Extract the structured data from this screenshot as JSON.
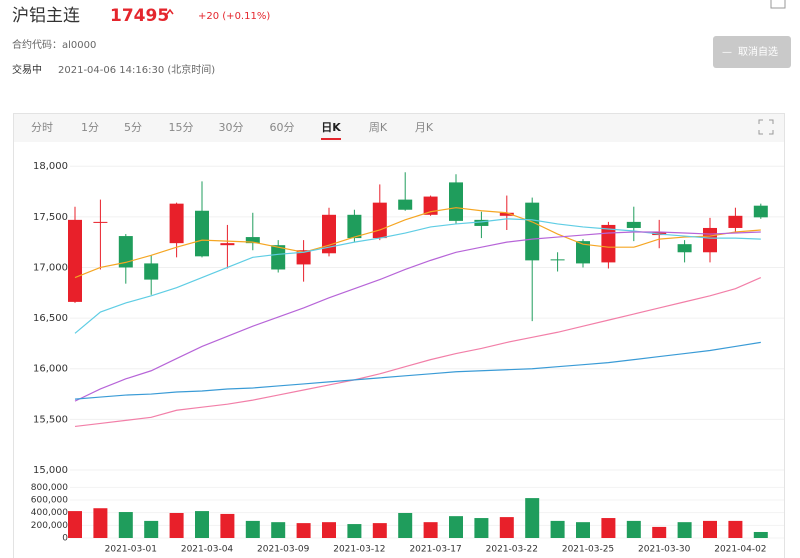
{
  "header": {
    "name": "沪铝主连",
    "price": "17495",
    "change": "+20 (+0.11%)",
    "code": "合约代码：al0000",
    "status": "交易中",
    "time": "2021-04-06 14:16:30 (北京时间)",
    "button": "取消自选"
  },
  "tabs": {
    "items": [
      "分时",
      "1分",
      "5分",
      "15分",
      "30分",
      "60分",
      "日K",
      "周K",
      "月K"
    ],
    "selected": 6
  },
  "chart_data": {
    "type": "candlestick",
    "categories": [
      null,
      null,
      "2021-03-01",
      null,
      null,
      "2021-03-04",
      null,
      null,
      "2021-03-09",
      null,
      null,
      "2021-03-12",
      null,
      null,
      "2021-03-17",
      null,
      null,
      "2021-03-22",
      null,
      null,
      "2021-03-25",
      null,
      null,
      "2021-03-30",
      null,
      null,
      "2021-04-02",
      null
    ],
    "open": [
      16660,
      17440,
      17310,
      17040,
      17240,
      17560,
      17220,
      17300,
      17220,
      17030,
      17140,
      17520,
      17290,
      17670,
      17520,
      17840,
      17470,
      17510,
      17640,
      17080,
      17260,
      17050,
      17450,
      17320,
      17230,
      17150,
      17390,
      17610
    ],
    "high": [
      17600,
      17670,
      17330,
      17120,
      17640,
      17850,
      17420,
      17540,
      17270,
      17270,
      17590,
      17570,
      17820,
      17940,
      17710,
      17920,
      17550,
      17710,
      17690,
      17150,
      17280,
      17450,
      17600,
      17470,
      17270,
      17490,
      17590,
      17630
    ],
    "low": [
      16650,
      16980,
      16840,
      16730,
      17100,
      17100,
      16990,
      17170,
      16950,
      16860,
      17110,
      17250,
      17270,
      17560,
      17510,
      17430,
      17290,
      17370,
      16470,
      16960,
      17000,
      16990,
      17260,
      17190,
      17050,
      17050,
      17350,
      17480
    ],
    "close": [
      17470,
      17450,
      17000,
      16880,
      17630,
      17110,
      17240,
      17240,
      16980,
      17170,
      17520,
      17290,
      17640,
      17570,
      17700,
      17460,
      17410,
      17540,
      17070,
      17070,
      17040,
      17420,
      17390,
      17350,
      17150,
      17390,
      17510,
      17495
    ],
    "up_color": "#e8202a",
    "down_color": "#1f9d5c",
    "ylim": [
      15000,
      18150
    ],
    "yticks": [
      {
        "value": 15000,
        "label": "15,000"
      },
      {
        "value": 15500,
        "label": "15,500"
      },
      {
        "value": 16000,
        "label": "16,000"
      },
      {
        "value": 16500,
        "label": "16,500"
      },
      {
        "value": 17000,
        "label": "17,000"
      },
      {
        "value": 17500,
        "label": "17,500"
      },
      {
        "value": 18000,
        "label": "18,000"
      }
    ],
    "grid": true,
    "moving_averages": [
      {
        "color": "#f5a623",
        "values": [
          16900,
          17000,
          17050,
          17120,
          17200,
          17270,
          17260,
          17250,
          17200,
          17150,
          17220,
          17300,
          17370,
          17470,
          17550,
          17590,
          17560,
          17540,
          17450,
          17330,
          17230,
          17200,
          17200,
          17280,
          17300,
          17310,
          17350,
          17370
        ]
      },
      {
        "color": "#5fcde4",
        "values": [
          16350,
          16560,
          16650,
          16720,
          16800,
          16900,
          17000,
          17100,
          17130,
          17150,
          17200,
          17250,
          17290,
          17340,
          17400,
          17430,
          17450,
          17480,
          17470,
          17430,
          17400,
          17380,
          17360,
          17330,
          17310,
          17290,
          17290,
          17280
        ]
      },
      {
        "color": "#b765d8",
        "values": [
          15680,
          15800,
          15900,
          15980,
          16100,
          16220,
          16320,
          16420,
          16510,
          16600,
          16700,
          16790,
          16880,
          16980,
          17070,
          17150,
          17200,
          17250,
          17280,
          17300,
          17320,
          17340,
          17350,
          17350,
          17340,
          17330,
          17340,
          17350
        ]
      },
      {
        "color": "#f27fa8",
        "values": [
          15430,
          15460,
          15490,
          15520,
          15590,
          15620,
          15650,
          15690,
          15740,
          15790,
          15840,
          15890,
          15950,
          16020,
          16090,
          16150,
          16200,
          16260,
          16310,
          16360,
          16420,
          16480,
          16540,
          16600,
          16660,
          16720,
          16790,
          16900
        ]
      },
      {
        "color": "#3a9bd6",
        "values": [
          15700,
          15720,
          15740,
          15750,
          15770,
          15780,
          15800,
          15810,
          15830,
          15850,
          15870,
          15890,
          15910,
          15930,
          15950,
          15970,
          15980,
          15990,
          16000,
          16020,
          16040,
          16060,
          16090,
          16120,
          16150,
          16180,
          16220,
          16260
        ]
      }
    ],
    "volume": {
      "values": [
        425000,
        470000,
        410000,
        270000,
        395000,
        425000,
        380000,
        270000,
        250000,
        235000,
        250000,
        220000,
        235000,
        395000,
        250000,
        345000,
        315000,
        330000,
        630000,
        270000,
        250000,
        315000,
        270000,
        175000,
        250000,
        270000,
        270000,
        95000
      ],
      "ylim": [
        0,
        900000
      ],
      "yticks": [
        0,
        {
          "value": 200000,
          "label": "200,000"
        },
        {
          "value": 400000,
          "label": "400,000"
        },
        {
          "value": 600000,
          "label": "600,000"
        },
        {
          "value": 800000,
          "label": "800,000"
        }
      ]
    }
  }
}
